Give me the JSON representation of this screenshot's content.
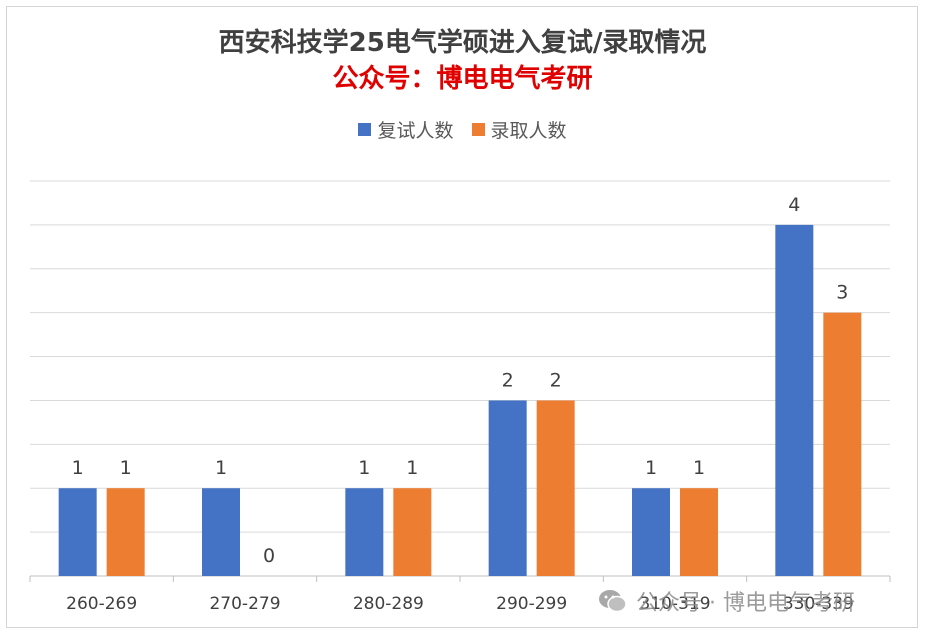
{
  "chart_data": {
    "type": "bar",
    "title": "西安科技学25电气学硕进入复试/录取情况",
    "subtitle": "公众号：博电电气考研",
    "categories": [
      "260-269",
      "270-279",
      "280-289",
      "290-299",
      "310-319",
      "330-339"
    ],
    "series": [
      {
        "name": "复试人数",
        "values": [
          1,
          1,
          1,
          2,
          1,
          4
        ],
        "color": "#4472C4"
      },
      {
        "name": "录取人数",
        "values": [
          1,
          0,
          1,
          2,
          1,
          3
        ],
        "color": "#ED7D31"
      }
    ],
    "ylim": [
      0,
      4.5
    ],
    "grid": true,
    "legend_position": "top",
    "data_labels": true
  },
  "watermark": {
    "text": "公众号 · 博电电气考研",
    "icon": "wechat-icon"
  }
}
